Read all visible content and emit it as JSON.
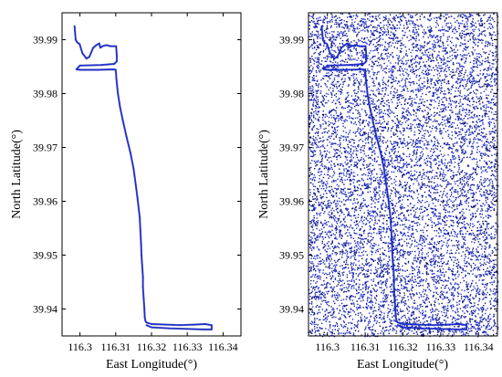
{
  "chart_data": [
    {
      "type": "line",
      "panel": "left",
      "xlabel": "East Longitude(°)",
      "ylabel": "North Latitude(°)",
      "xlim": [
        116.295,
        116.345
      ],
      "ylim": [
        39.935,
        39.995
      ],
      "xticks": [
        116.3,
        116.31,
        116.32,
        116.33,
        116.34
      ],
      "xtick_labels": [
        "116.3",
        "116.31",
        "116.32",
        "116.33",
        "116.34"
      ],
      "yticks": [
        39.94,
        39.95,
        39.96,
        39.97,
        39.98,
        39.99
      ],
      "ytick_labels": [
        "39.94",
        "39.95",
        "39.96",
        "39.97",
        "39.98",
        "39.99"
      ],
      "grid": false,
      "series": [
        {
          "color": "#1a2bd8",
          "x": [
            116.2985,
            116.2988,
            116.2992,
            116.2999,
            116.3007,
            116.3018,
            116.3026,
            116.3037,
            116.3046,
            116.3054,
            116.3057,
            116.3063,
            116.3074,
            116.3085,
            116.3101,
            116.3103,
            116.3103,
            116.3096,
            116.306,
            116.3,
            116.299,
            116.3,
            116.305,
            116.3094,
            116.31,
            116.3102,
            116.3106,
            116.3112,
            116.312,
            116.313,
            116.3141,
            116.315,
            116.3156,
            116.3161,
            116.3167,
            116.3169,
            116.3171,
            116.3172,
            116.3174,
            116.3176,
            116.3176,
            116.3178,
            116.318,
            116.3181,
            116.3183,
            116.3186,
            116.32,
            116.324,
            116.328,
            116.332,
            116.335,
            116.3368,
            116.3368,
            116.3345,
            116.33,
            116.325,
            116.32,
            116.3186
          ],
          "y": [
            39.9925,
            39.99,
            39.9895,
            39.9892,
            39.9875,
            39.9865,
            39.9868,
            39.9885,
            39.989,
            39.9893,
            39.9885,
            39.9888,
            39.989,
            39.9888,
            39.9888,
            39.987,
            39.986,
            39.9855,
            39.9853,
            39.9852,
            39.9845,
            39.9844,
            39.9844,
            39.9845,
            39.9844,
            39.9826,
            39.98,
            39.9775,
            39.975,
            39.972,
            39.969,
            39.966,
            39.963,
            39.9605,
            39.957,
            39.9545,
            39.952,
            39.95,
            39.948,
            39.946,
            39.944,
            39.942,
            39.94,
            39.9385,
            39.9378,
            39.9375,
            39.9372,
            39.9371,
            39.937,
            39.9371,
            39.9372,
            39.937,
            39.9362,
            39.9362,
            39.9363,
            39.9364,
            39.9366,
            39.937
          ]
        }
      ]
    },
    {
      "type": "scatter",
      "panel": "right",
      "xlabel": "East Longitude(°)",
      "ylabel": "North Latitude(°)",
      "xlim": [
        116.295,
        116.345
      ],
      "ylim": [
        39.935,
        39.995
      ],
      "xticks": [
        116.3,
        116.31,
        116.32,
        116.33,
        116.34
      ],
      "xtick_labels": [
        "116.3",
        "116.31",
        "116.32",
        "116.33",
        "116.34"
      ],
      "yticks": [
        39.94,
        39.95,
        39.96,
        39.97,
        39.98,
        39.99
      ],
      "ytick_labels": [
        "39.94",
        "39.95",
        "39.96",
        "39.97",
        "39.98",
        "39.99"
      ],
      "grid": false,
      "noise_color": "#1f2fc8",
      "noise_color_dark": "#0a1070",
      "noise_point_count": 9000,
      "series": [
        {
          "color": "#1a2bd8",
          "x": [
            116.2985,
            116.2988,
            116.2992,
            116.2999,
            116.3007,
            116.3018,
            116.3026,
            116.3037,
            116.3046,
            116.3054,
            116.3057,
            116.3063,
            116.3074,
            116.3085,
            116.3101,
            116.3103,
            116.3103,
            116.3096,
            116.306,
            116.3,
            116.299,
            116.3,
            116.305,
            116.3094,
            116.31,
            116.3102,
            116.3106,
            116.3112,
            116.312,
            116.313,
            116.3141,
            116.315,
            116.3156,
            116.3161,
            116.3167,
            116.3169,
            116.3171,
            116.3172,
            116.3174,
            116.3176,
            116.3176,
            116.3178,
            116.318,
            116.3181,
            116.3183,
            116.3186,
            116.32,
            116.324,
            116.328,
            116.332,
            116.335,
            116.3368,
            116.3368,
            116.3345,
            116.33,
            116.325,
            116.32,
            116.3186
          ],
          "y": [
            39.9925,
            39.99,
            39.9895,
            39.9892,
            39.9875,
            39.9865,
            39.9868,
            39.9885,
            39.989,
            39.9893,
            39.9885,
            39.9888,
            39.989,
            39.9888,
            39.9888,
            39.987,
            39.986,
            39.9855,
            39.9853,
            39.9852,
            39.9845,
            39.9844,
            39.9844,
            39.9845,
            39.9844,
            39.9826,
            39.98,
            39.9775,
            39.975,
            39.972,
            39.969,
            39.966,
            39.963,
            39.9605,
            39.957,
            39.9545,
            39.952,
            39.95,
            39.948,
            39.946,
            39.944,
            39.942,
            39.94,
            39.9385,
            39.9378,
            39.9375,
            39.9372,
            39.9371,
            39.937,
            39.9371,
            39.9372,
            39.937,
            39.9362,
            39.9362,
            39.9363,
            39.9364,
            39.9366,
            39.937
          ]
        }
      ]
    }
  ]
}
